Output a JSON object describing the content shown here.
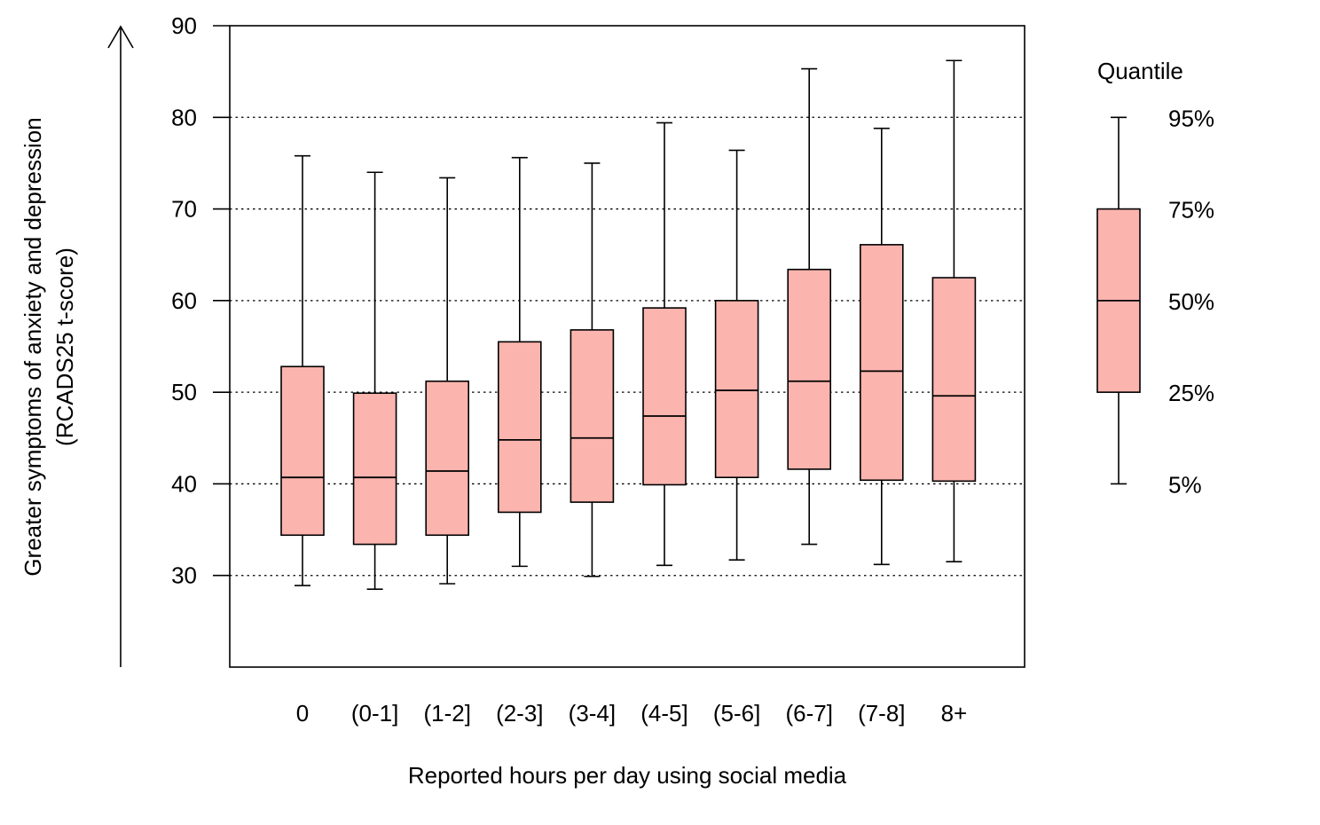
{
  "chart_data": {
    "type": "boxplot",
    "title": "",
    "xlabel": "Reported hours per day using social media",
    "ylabel_line1": "Greater symptoms of anxiety and depression",
    "ylabel_line2": "(RCADS25 t-score)",
    "ylim": [
      20,
      90
    ],
    "yticks": [
      30,
      40,
      50,
      60,
      70,
      80,
      90
    ],
    "grid": "horizontal dotted at 30-80",
    "box_color": "#fbb4ae",
    "categories": [
      "0",
      "(0-1]",
      "(1-2]",
      "(2-3]",
      "(3-4]",
      "(4-5]",
      "(5-6]",
      "(6-7]",
      "(7-8]",
      "8+"
    ],
    "boxes": [
      {
        "p5": 28.9,
        "q1": 34.4,
        "median": 40.7,
        "q3": 52.8,
        "p95": 75.8
      },
      {
        "p5": 28.5,
        "q1": 33.4,
        "median": 40.7,
        "q3": 49.9,
        "p95": 74.0
      },
      {
        "p5": 29.1,
        "q1": 34.4,
        "median": 41.4,
        "q3": 51.2,
        "p95": 73.4
      },
      {
        "p5": 31.0,
        "q1": 36.9,
        "median": 44.8,
        "q3": 55.5,
        "p95": 75.6
      },
      {
        "p5": 29.9,
        "q1": 38.0,
        "median": 45.0,
        "q3": 56.8,
        "p95": 75.0
      },
      {
        "p5": 31.1,
        "q1": 39.9,
        "median": 47.4,
        "q3": 59.2,
        "p95": 79.4
      },
      {
        "p5": 31.7,
        "q1": 40.7,
        "median": 50.2,
        "q3": 60.0,
        "p95": 76.4
      },
      {
        "p5": 33.4,
        "q1": 41.6,
        "median": 51.2,
        "q3": 63.4,
        "p95": 85.3
      },
      {
        "p5": 31.2,
        "q1": 40.4,
        "median": 52.3,
        "q3": 66.1,
        "p95": 78.8
      },
      {
        "p5": 31.5,
        "q1": 40.3,
        "median": 49.6,
        "q3": 62.5,
        "p95": 86.2
      }
    ],
    "legend": {
      "title": "Quantile",
      "placement": "right",
      "example": {
        "p5": 40,
        "q1": 50,
        "median": 60,
        "q3": 70,
        "p95": 80
      },
      "labels": {
        "p95": "95%",
        "q3": "75%",
        "median": "50%",
        "q1": "25%",
        "p5": "5%"
      }
    }
  }
}
